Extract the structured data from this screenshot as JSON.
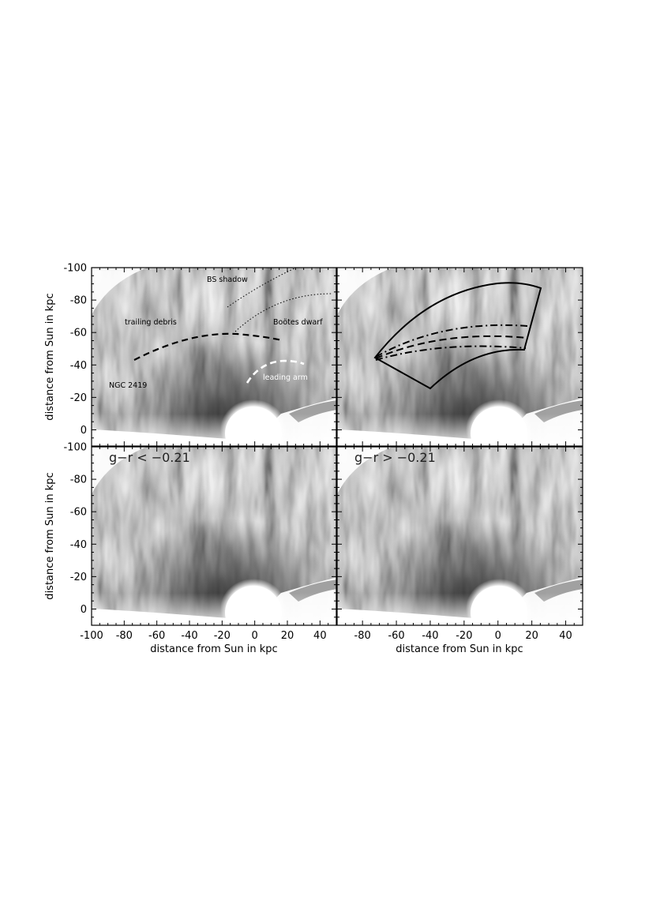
{
  "figure": {
    "x_axis_label": "distance from Sun in kpc",
    "y_axis_label": "distance from Sun in kpc",
    "panels": [
      {
        "id": "top-left",
        "annotations": {
          "bs_shadow": "BS shadow",
          "trailing_debris": "trailing debris",
          "bootes_dwarf": "Boötes dwarf",
          "ngc_2419": "NGC 2419",
          "leading_arm": "leading arm"
        }
      },
      {
        "id": "top-right",
        "annotations": {}
      },
      {
        "id": "bottom-left",
        "label": "g−r < −0.21"
      },
      {
        "id": "bottom-right",
        "label": "g−r > −0.21"
      }
    ]
  },
  "chart_data": {
    "type": "heatmap",
    "xlabel": "distance from Sun in kpc",
    "ylabel": "distance from Sun in kpc",
    "y_ticks": [
      "-100",
      "-80",
      "-60",
      "-40",
      "-20",
      "0"
    ],
    "x_ticks_left": [
      "-100",
      "-80",
      "-60",
      "-40",
      "-20",
      "0",
      "20",
      "40"
    ],
    "x_ticks_right": [
      "-80",
      "-60",
      "-40",
      "-20",
      "0",
      "20",
      "40"
    ],
    "xlim_left": [
      -100,
      50
    ],
    "xlim_right": [
      -95,
      50
    ],
    "ylim": [
      -100,
      10
    ],
    "y_inverted": true,
    "colormap": "grayscale",
    "overlays": {
      "trailing_debris_curve": [
        [
          -73,
          -43
        ],
        [
          -45,
          -53
        ],
        [
          -15,
          -58
        ],
        [
          0,
          -57
        ],
        [
          17,
          -55
        ]
      ],
      "leading_arm_curve": [
        [
          -3,
          -30
        ],
        [
          7,
          -38
        ],
        [
          20,
          -42
        ],
        [
          30,
          -40
        ]
      ],
      "bs_shadow_boundary_upper": [
        [
          -10,
          -82
        ],
        [
          15,
          -96
        ],
        [
          25,
          -100
        ]
      ],
      "bs_shadow_boundary_lower": [
        [
          -10,
          -62
        ],
        [
          10,
          -78
        ],
        [
          30,
          -86
        ],
        [
          48,
          -84
        ]
      ]
    }
  }
}
